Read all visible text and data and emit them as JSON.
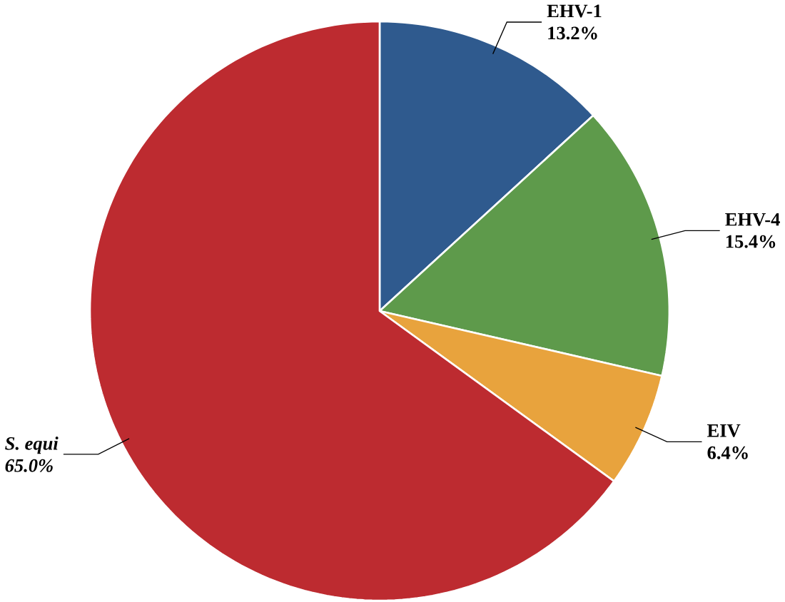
{
  "chart_data": {
    "type": "pie",
    "categories": [
      "EHV-1",
      "EHV-4",
      "EIV",
      "S. equi"
    ],
    "values": [
      13.2,
      15.4,
      6.4,
      65.0
    ],
    "value_labels": [
      "13.2%",
      "15.4%",
      "6.4%",
      "65.0%"
    ],
    "colors": [
      "#2f5a8e",
      "#5e9a4b",
      "#e8a33d",
      "#bd2b30"
    ]
  }
}
